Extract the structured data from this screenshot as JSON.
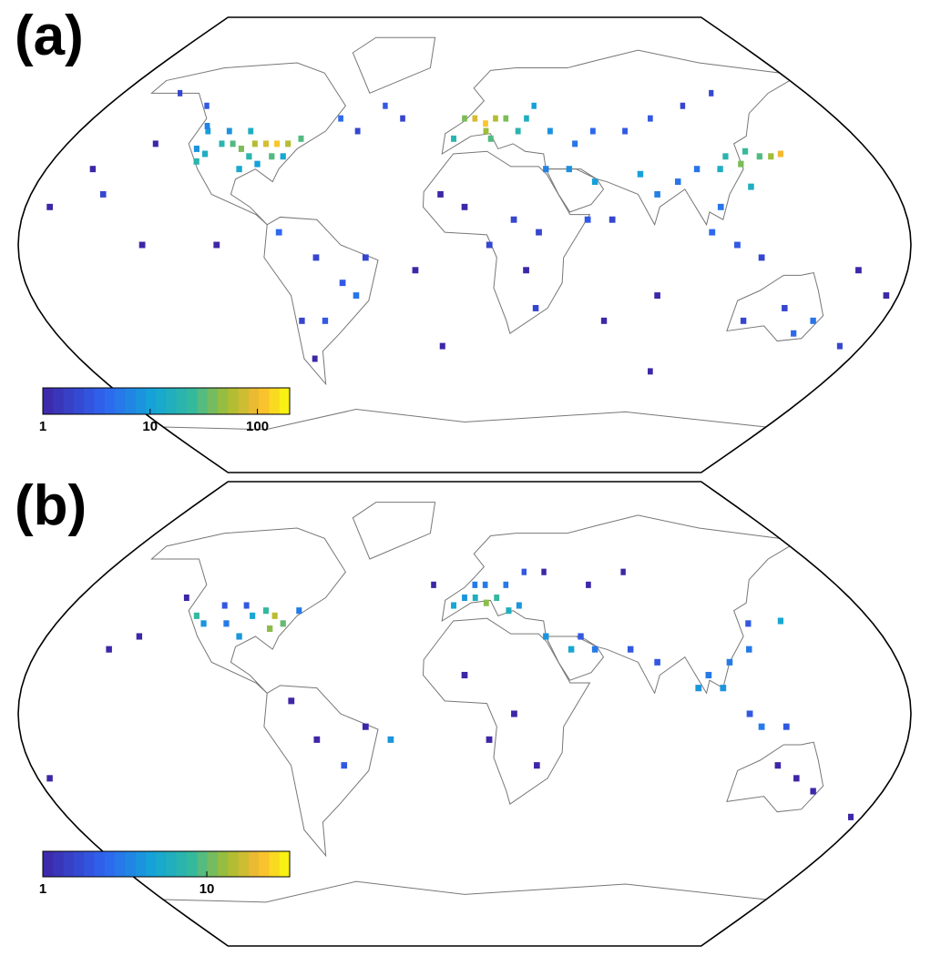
{
  "maps": [
    {
      "label": "(a)",
      "colorbar": {
        "lim": [
          1,
          200
        ],
        "ticks": [
          1,
          10,
          100
        ]
      },
      "cells": [
        [
          -120,
          38,
          8
        ],
        [
          -115,
          36,
          15
        ],
        [
          -110,
          40,
          20
        ],
        [
          -105,
          40,
          30
        ],
        [
          -100,
          38,
          40
        ],
        [
          -95,
          40,
          60
        ],
        [
          -90,
          40,
          80
        ],
        [
          -85,
          40,
          120
        ],
        [
          -80,
          40,
          60
        ],
        [
          -75,
          42,
          30
        ],
        [
          -95,
          35,
          20
        ],
        [
          -85,
          35,
          30
        ],
        [
          -90,
          32,
          10
        ],
        [
          -100,
          45,
          15
        ],
        [
          -110,
          45,
          8
        ],
        [
          -120,
          45,
          10
        ],
        [
          -122,
          47,
          6
        ],
        [
          -80,
          35,
          12
        ],
        [
          -117,
          33,
          20
        ],
        [
          -97,
          30,
          12
        ],
        [
          -60,
          50,
          4
        ],
        [
          -40,
          55,
          3
        ],
        [
          -30,
          50,
          2
        ],
        [
          -50,
          45,
          2
        ],
        [
          -130,
          55,
          3
        ],
        [
          -150,
          60,
          2
        ],
        [
          -140,
          40,
          1
        ],
        [
          -160,
          30,
          1
        ],
        [
          -150,
          20,
          2
        ],
        [
          0,
          50,
          40
        ],
        [
          5,
          50,
          80
        ],
        [
          10,
          48,
          120
        ],
        [
          15,
          50,
          60
        ],
        [
          20,
          50,
          40
        ],
        [
          -5,
          42,
          20
        ],
        [
          10,
          45,
          50
        ],
        [
          25,
          45,
          20
        ],
        [
          30,
          50,
          15
        ],
        [
          35,
          55,
          10
        ],
        [
          40,
          45,
          8
        ],
        [
          12,
          42,
          30
        ],
        [
          50,
          40,
          5
        ],
        [
          60,
          45,
          4
        ],
        [
          75,
          45,
          3
        ],
        [
          90,
          50,
          3
        ],
        [
          110,
          55,
          2
        ],
        [
          130,
          60,
          2
        ],
        [
          75,
          28,
          10
        ],
        [
          80,
          20,
          6
        ],
        [
          90,
          25,
          5
        ],
        [
          100,
          30,
          5
        ],
        [
          110,
          30,
          15
        ],
        [
          115,
          35,
          20
        ],
        [
          120,
          32,
          40
        ],
        [
          125,
          37,
          25
        ],
        [
          130,
          35,
          30
        ],
        [
          135,
          35,
          50
        ],
        [
          140,
          36,
          100
        ],
        [
          120,
          23,
          15
        ],
        [
          105,
          15,
          5
        ],
        [
          100,
          5,
          4
        ],
        [
          110,
          0,
          3
        ],
        [
          120,
          -5,
          2
        ],
        [
          45,
          30,
          8
        ],
        [
          55,
          25,
          10
        ],
        [
          35,
          30,
          6
        ],
        [
          30,
          5,
          2
        ],
        [
          20,
          10,
          2
        ],
        [
          0,
          15,
          1
        ],
        [
          10,
          0,
          2
        ],
        [
          25,
          -10,
          1
        ],
        [
          30,
          -25,
          2
        ],
        [
          -10,
          20,
          1
        ],
        [
          50,
          10,
          3
        ],
        [
          60,
          10,
          2
        ],
        [
          -75,
          5,
          4
        ],
        [
          -60,
          -5,
          2
        ],
        [
          -45,
          -20,
          5
        ],
        [
          -50,
          -15,
          3
        ],
        [
          -60,
          -30,
          3
        ],
        [
          -70,
          -30,
          2
        ],
        [
          -70,
          -45,
          1
        ],
        [
          -40,
          -5,
          2
        ],
        [
          145,
          -35,
          4
        ],
        [
          150,
          -30,
          5
        ],
        [
          135,
          -25,
          2
        ],
        [
          120,
          -30,
          2
        ],
        [
          170,
          -40,
          2
        ],
        [
          175,
          -20,
          1
        ],
        [
          160,
          -10,
          1
        ],
        [
          -170,
          15,
          1
        ],
        [
          -130,
          0,
          1
        ],
        [
          -100,
          0,
          1
        ],
        [
          -20,
          -10,
          1
        ],
        [
          80,
          -20,
          1
        ],
        [
          60,
          -30,
          1
        ],
        [
          90,
          -50,
          1
        ],
        [
          -10,
          -40,
          1
        ]
      ]
    },
    {
      "label": "(b)",
      "colorbar": {
        "lim": [
          1,
          32
        ],
        "ticks": [
          1,
          10
        ]
      },
      "cells": [
        [
          -120,
          38,
          8
        ],
        [
          -115,
          35,
          4
        ],
        [
          -105,
          35,
          3
        ],
        [
          -95,
          38,
          5
        ],
        [
          -90,
          40,
          8
        ],
        [
          -85,
          38,
          15
        ],
        [
          -85,
          33,
          12
        ],
        [
          -80,
          35,
          10
        ],
        [
          -97,
          30,
          4
        ],
        [
          -100,
          42,
          2
        ],
        [
          -75,
          40,
          3
        ],
        [
          -110,
          42,
          2
        ],
        [
          -130,
          45,
          1
        ],
        [
          -150,
          25,
          1
        ],
        [
          -140,
          30,
          1
        ],
        [
          -5,
          42,
          5
        ],
        [
          0,
          45,
          4
        ],
        [
          5,
          45,
          6
        ],
        [
          10,
          43,
          12
        ],
        [
          15,
          45,
          8
        ],
        [
          20,
          40,
          6
        ],
        [
          25,
          42,
          4
        ],
        [
          5,
          50,
          3
        ],
        [
          10,
          50,
          3
        ],
        [
          20,
          50,
          3
        ],
        [
          30,
          55,
          2
        ],
        [
          -15,
          50,
          1
        ],
        [
          40,
          55,
          1
        ],
        [
          50,
          30,
          2
        ],
        [
          55,
          25,
          3
        ],
        [
          45,
          25,
          5
        ],
        [
          35,
          30,
          4
        ],
        [
          70,
          25,
          2
        ],
        [
          80,
          20,
          2
        ],
        [
          100,
          15,
          3
        ],
        [
          105,
          10,
          4
        ],
        [
          110,
          20,
          3
        ],
        [
          120,
          25,
          3
        ],
        [
          125,
          35,
          2
        ],
        [
          140,
          36,
          5
        ],
        [
          115,
          0,
          2
        ],
        [
          120,
          -5,
          3
        ],
        [
          130,
          -5,
          2
        ],
        [
          95,
          10,
          4
        ],
        [
          60,
          50,
          1
        ],
        [
          80,
          55,
          1
        ],
        [
          0,
          15,
          1
        ],
        [
          20,
          0,
          1
        ],
        [
          10,
          -10,
          1
        ],
        [
          30,
          -20,
          1
        ],
        [
          -60,
          -10,
          1
        ],
        [
          -50,
          -20,
          2
        ],
        [
          -70,
          5,
          1
        ],
        [
          -40,
          -5,
          1
        ],
        [
          -30,
          -10,
          4
        ],
        [
          140,
          -25,
          1
        ],
        [
          150,
          -30,
          1
        ],
        [
          130,
          -20,
          1
        ],
        [
          175,
          -40,
          1
        ],
        [
          -175,
          -25,
          1
        ]
      ]
    }
  ]
}
